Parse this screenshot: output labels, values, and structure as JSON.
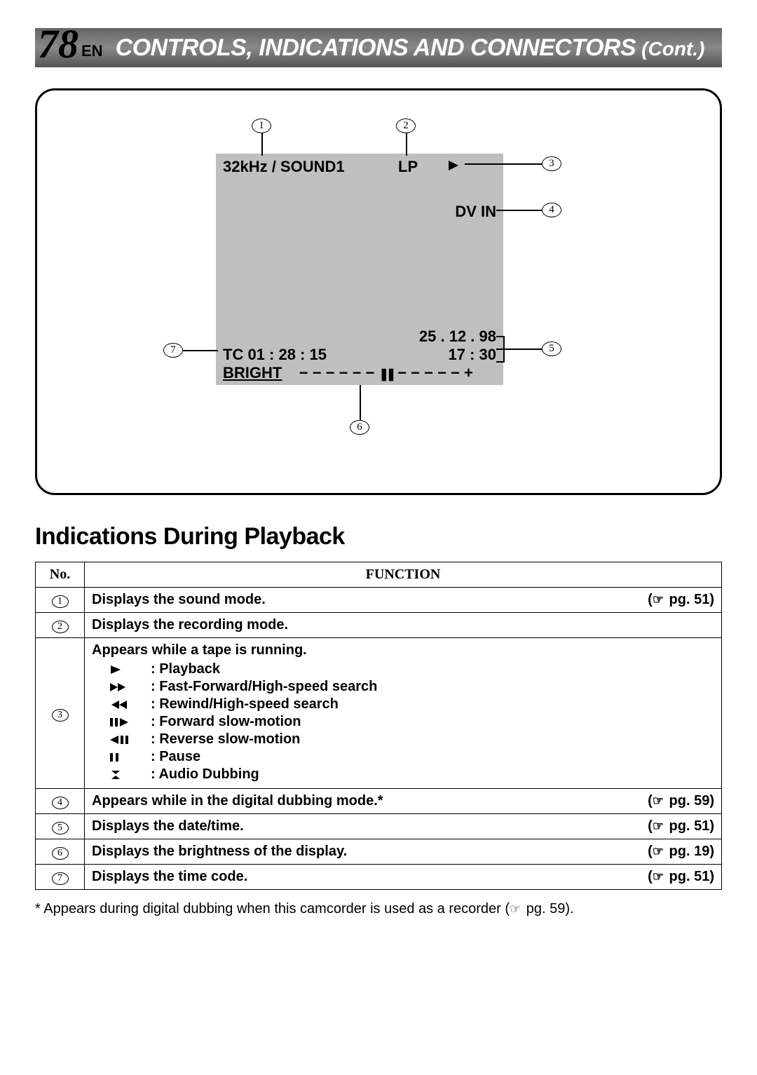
{
  "header": {
    "page_number": "78",
    "lang": "EN",
    "title": "CONTROLS, INDICATIONS AND CONNECTORS",
    "cont": "(Cont.)",
    "bg_gradient": [
      "#666666",
      "#888888",
      "#555555"
    ],
    "title_color": "#ffffff"
  },
  "diagram": {
    "screen_bg": "#bfbfbf",
    "labels": {
      "sound": "32kHz / SOUND1",
      "mode": "LP",
      "play_symbol": "▶",
      "dv_in": "DV IN",
      "date": "25 . 12 . 98",
      "time": "17 : 30",
      "tc": "TC  01 : 28 : 15",
      "bright": "BRIGHT",
      "bright_minus": "−",
      "bright_dashes": "− − − − −",
      "bright_marker": "❚❚",
      "bright_dashes2": "− − − − −",
      "bright_plus": "+"
    },
    "callouts": [
      "1",
      "2",
      "3",
      "4",
      "5",
      "6",
      "7"
    ]
  },
  "section_title": "Indications During Playback",
  "table": {
    "headers": {
      "no": "No.",
      "function": "FUNCTION"
    },
    "rows": [
      {
        "n": "1",
        "text": "Displays the sound mode.",
        "pg": "pg. 51"
      },
      {
        "n": "2",
        "text": "Displays the recording mode."
      },
      {
        "n": "3",
        "text": "Appears while a tape is running.",
        "icons": [
          {
            "sym": "play",
            "label": ": Playback"
          },
          {
            "sym": "ff",
            "label": ": Fast-Forward/High-speed search"
          },
          {
            "sym": "rew",
            "label": ": Rewind/High-speed search"
          },
          {
            "sym": "fslow",
            "label": ": Forward slow-motion"
          },
          {
            "sym": "rslow",
            "label": ": Reverse slow-motion"
          },
          {
            "sym": "pause",
            "label": ": Pause"
          },
          {
            "sym": "adub",
            "label": ": Audio Dubbing"
          }
        ]
      },
      {
        "n": "4",
        "text": "Appears while in the digital dubbing mode.*",
        "pg": "pg. 59"
      },
      {
        "n": "5",
        "text": "Displays the date/time.",
        "pg": "pg. 51"
      },
      {
        "n": "6",
        "text": "Displays the brightness of the display.",
        "pg": "pg. 19"
      },
      {
        "n": "7",
        "text": "Displays the time code.",
        "pg": "pg. 51"
      }
    ]
  },
  "footnote": "* Appears during digital dubbing when this camcorder is used as a recorder (",
  "footnote_pg": "pg. 59).",
  "colors": {
    "page_bg": "#ffffff",
    "text": "#000000",
    "border": "#000000"
  }
}
